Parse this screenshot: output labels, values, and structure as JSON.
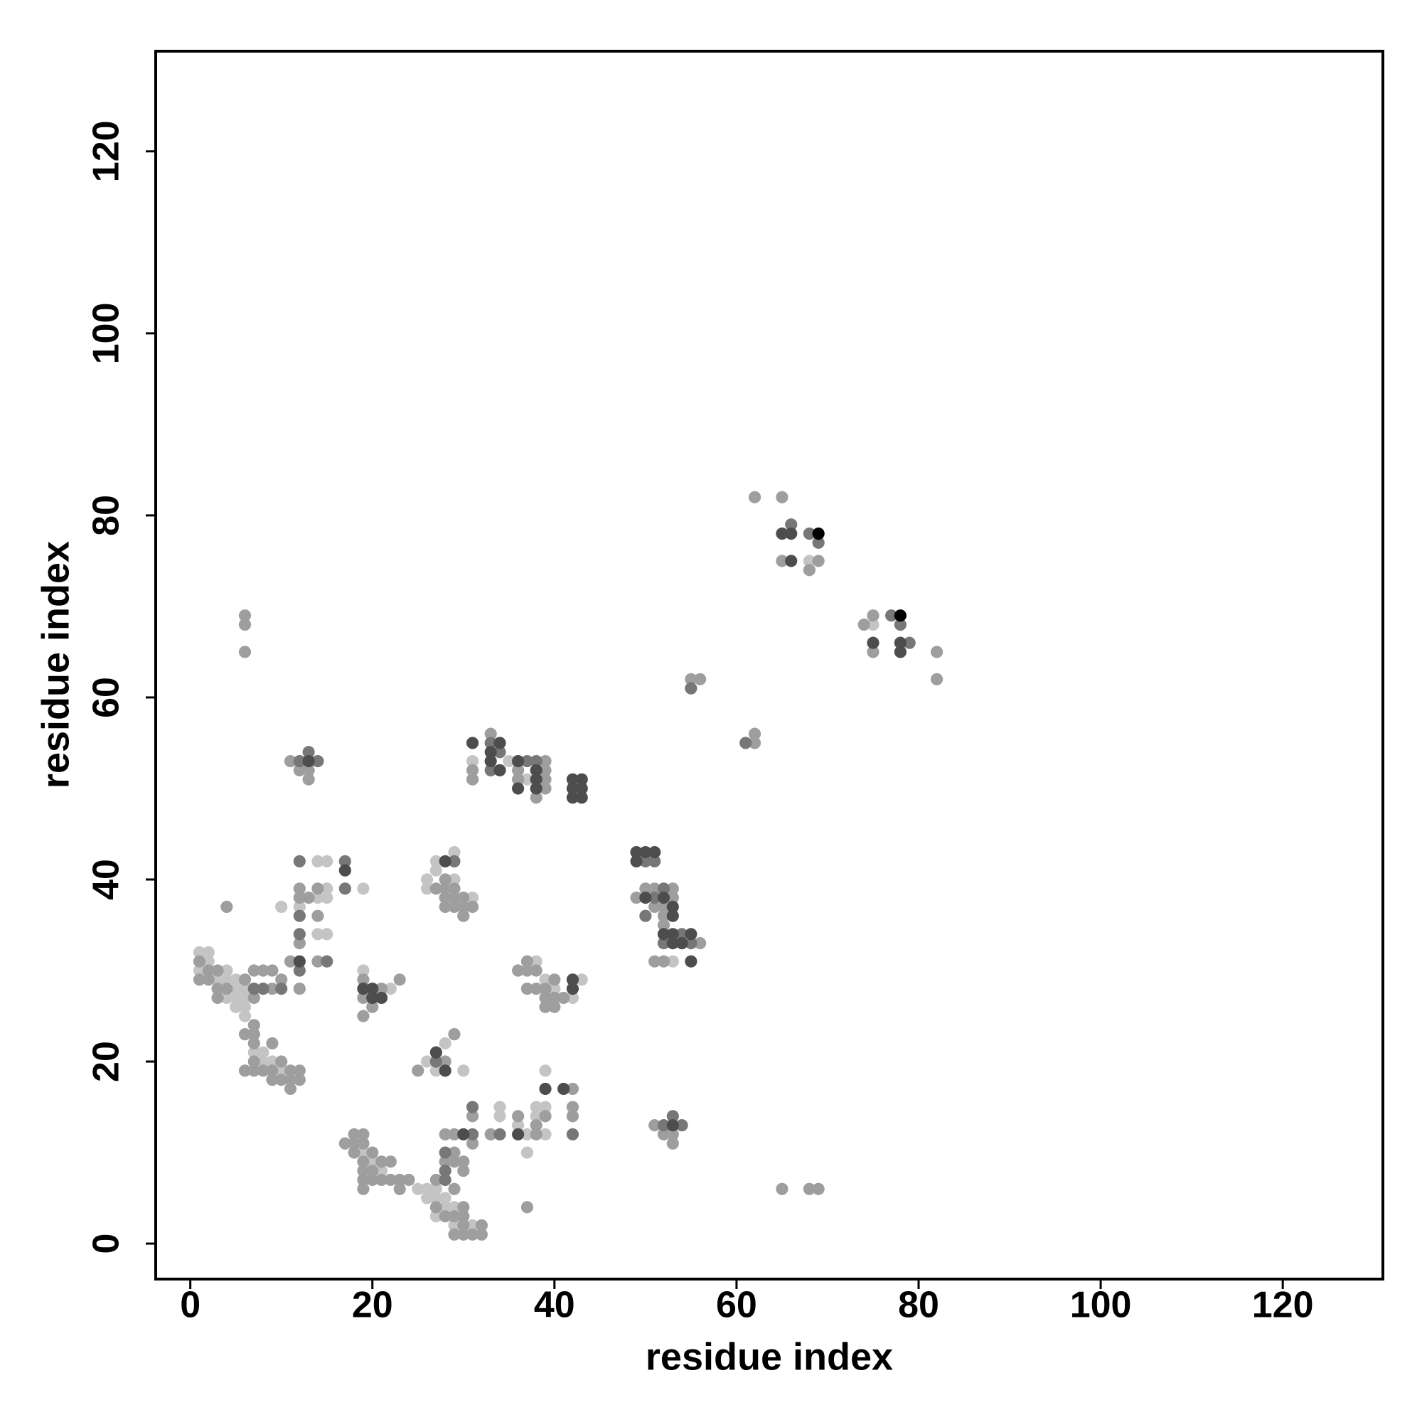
{
  "chart_data": {
    "type": "scatter",
    "x_label": "residue index",
    "y_label": "residue index",
    "xlim": [
      -3.8,
      131
    ],
    "ylim": [
      -3.9,
      131
    ],
    "xticks": [
      0,
      20,
      40,
      60,
      80,
      100,
      120
    ],
    "yticks": [
      0,
      20,
      40,
      60,
      80,
      100,
      120
    ],
    "grid": false,
    "series": [
      {
        "color": "#c4c4c4",
        "x": [
          68,
          75,
          35,
          31,
          37,
          53,
          26,
          27,
          27,
          29,
          26,
          29,
          31,
          38,
          39,
          43,
          40,
          42,
          19,
          22,
          14,
          15,
          15,
          19,
          14,
          15,
          12,
          14,
          15,
          10,
          1,
          2,
          2,
          4,
          1,
          3,
          4,
          5,
          5,
          6,
          4,
          5,
          6,
          5,
          6,
          6,
          7,
          8,
          8,
          9,
          10,
          26,
          28,
          30,
          27,
          19,
          20,
          21,
          25,
          26,
          27,
          26,
          27,
          28,
          28,
          29,
          27,
          29,
          31,
          34,
          34,
          36,
          37,
          39,
          38,
          38,
          39,
          37,
          39
        ],
        "values": [
          75,
          68,
          53,
          53,
          51,
          31,
          40,
          41,
          42,
          43,
          39,
          40,
          38,
          31,
          29,
          29,
          28,
          27,
          30,
          28,
          42,
          42,
          39,
          39,
          38,
          38,
          37,
          34,
          34,
          37,
          32,
          32,
          31,
          30,
          30,
          29,
          29,
          29,
          28,
          28,
          27,
          27,
          27,
          26,
          26,
          25,
          21,
          21,
          20,
          20,
          19,
          20,
          22,
          19,
          19,
          10,
          9,
          8,
          6,
          6,
          6,
          5,
          5,
          5,
          4,
          4,
          3,
          2,
          2,
          15,
          14,
          13,
          12,
          12,
          14,
          15,
          15,
          10,
          19
        ]
      },
      {
        "color": "#9e9e9e",
        "x": [
          62,
          65,
          65,
          68,
          69,
          74,
          75,
          75,
          82,
          82,
          55,
          56,
          62,
          62,
          6,
          6,
          6,
          65,
          68,
          69,
          11,
          12,
          13,
          13,
          33,
          31,
          31,
          39,
          36,
          39,
          36,
          39,
          39,
          38,
          49,
          50,
          51,
          53,
          53,
          51,
          52,
          52,
          52,
          56,
          51,
          52,
          51,
          52,
          53,
          53,
          27,
          28,
          28,
          29,
          28,
          29,
          30,
          28,
          29,
          30,
          31,
          30,
          36,
          37,
          37,
          38,
          40,
          37,
          38,
          39,
          39,
          40,
          41,
          39,
          40,
          19,
          21,
          23,
          19,
          20,
          19,
          12,
          14,
          12,
          13,
          14,
          12,
          11,
          14,
          12,
          4,
          1,
          3,
          2,
          1,
          2,
          6,
          3,
          4,
          3,
          7,
          8,
          9,
          9,
          10,
          7,
          6,
          7,
          7,
          7,
          9,
          7,
          10,
          6,
          7,
          8,
          9,
          9,
          11,
          12,
          10,
          11,
          12,
          11,
          25,
          28,
          29,
          17,
          18,
          18,
          19,
          19,
          18,
          20,
          19,
          21,
          22,
          19,
          20,
          19,
          20,
          21,
          22,
          23,
          24,
          19,
          23,
          27,
          28,
          29,
          29,
          28,
          29,
          30,
          30,
          29,
          27,
          30,
          28,
          29,
          30,
          30,
          32,
          29,
          30,
          31,
          32,
          31,
          31,
          33,
          36,
          38,
          38,
          39,
          37,
          42,
          42,
          42
        ],
        "values": [
          82,
          82,
          75,
          74,
          75,
          68,
          69,
          65,
          65,
          62,
          62,
          62,
          56,
          55,
          69,
          68,
          65,
          6,
          6,
          6,
          53,
          52,
          52,
          51,
          56,
          52,
          51,
          53,
          52,
          52,
          51,
          51,
          50,
          49,
          38,
          39,
          39,
          39,
          38,
          37,
          37,
          36,
          35,
          33,
          31,
          31,
          13,
          12,
          12,
          11,
          39,
          40,
          39,
          39,
          38,
          38,
          38,
          37,
          37,
          37,
          37,
          36,
          30,
          31,
          30,
          30,
          29,
          28,
          28,
          28,
          27,
          27,
          27,
          26,
          26,
          29,
          28,
          29,
          27,
          26,
          25,
          39,
          39,
          38,
          38,
          36,
          33,
          31,
          31,
          28,
          37,
          31,
          30,
          30,
          29,
          29,
          29,
          28,
          28,
          27,
          30,
          30,
          30,
          28,
          29,
          27,
          23,
          24,
          23,
          22,
          22,
          20,
          20,
          19,
          19,
          19,
          19,
          18,
          19,
          19,
          18,
          18,
          18,
          17,
          19,
          20,
          23,
          11,
          11,
          12,
          12,
          11,
          10,
          10,
          9,
          9,
          9,
          8,
          8,
          7,
          7,
          7,
          7,
          7,
          7,
          6,
          6,
          7,
          9,
          9,
          10,
          12,
          12,
          9,
          8,
          6,
          4,
          4,
          3,
          3,
          3,
          2,
          2,
          1,
          1,
          1,
          1,
          11,
          14,
          12,
          14,
          12,
          13,
          14,
          4,
          17,
          15,
          14
        ]
      },
      {
        "color": "#777777",
        "x": [
          66,
          68,
          69,
          77,
          78,
          79,
          55,
          61,
          12,
          13,
          14,
          33,
          34,
          33,
          37,
          38,
          50,
          51,
          52,
          51,
          50,
          54,
          52,
          55,
          52,
          53,
          54,
          29,
          12,
          17,
          17,
          12,
          12,
          15,
          12,
          7,
          8,
          10,
          27,
          28,
          28,
          28,
          31,
          31,
          34,
          42
        ],
        "values": [
          79,
          78,
          77,
          69,
          68,
          66,
          61,
          55,
          53,
          54,
          53,
          55,
          54,
          52,
          53,
          53,
          42,
          42,
          39,
          38,
          36,
          34,
          33,
          33,
          13,
          14,
          13,
          42,
          42,
          42,
          39,
          36,
          34,
          31,
          30,
          28,
          28,
          28,
          20,
          7,
          8,
          10,
          12,
          15,
          12,
          12
        ]
      },
      {
        "color": "#4d4d4d",
        "x": [
          65,
          66,
          66,
          75,
          78,
          78,
          13,
          31,
          34,
          33,
          33,
          34,
          36,
          38,
          38,
          36,
          38,
          42,
          43,
          42,
          43,
          42,
          43,
          49,
          50,
          51,
          49,
          50,
          52,
          53,
          53,
          52,
          53,
          55,
          53,
          54,
          55,
          53,
          28,
          42,
          42,
          19,
          20,
          20,
          21,
          17,
          12,
          27,
          28,
          30,
          36,
          39,
          41
        ],
        "values": [
          78,
          78,
          75,
          66,
          66,
          65,
          53,
          55,
          55,
          54,
          53,
          52,
          53,
          52,
          51,
          50,
          50,
          51,
          51,
          50,
          50,
          49,
          49,
          43,
          43,
          43,
          42,
          38,
          38,
          37,
          36,
          34,
          34,
          34,
          33,
          33,
          31,
          13,
          42,
          29,
          28,
          28,
          28,
          27,
          27,
          41,
          31,
          21,
          19,
          12,
          12,
          17,
          17
        ]
      },
      {
        "color": "#000000",
        "x": [
          69,
          78
        ],
        "values": [
          78,
          69
        ]
      }
    ]
  }
}
